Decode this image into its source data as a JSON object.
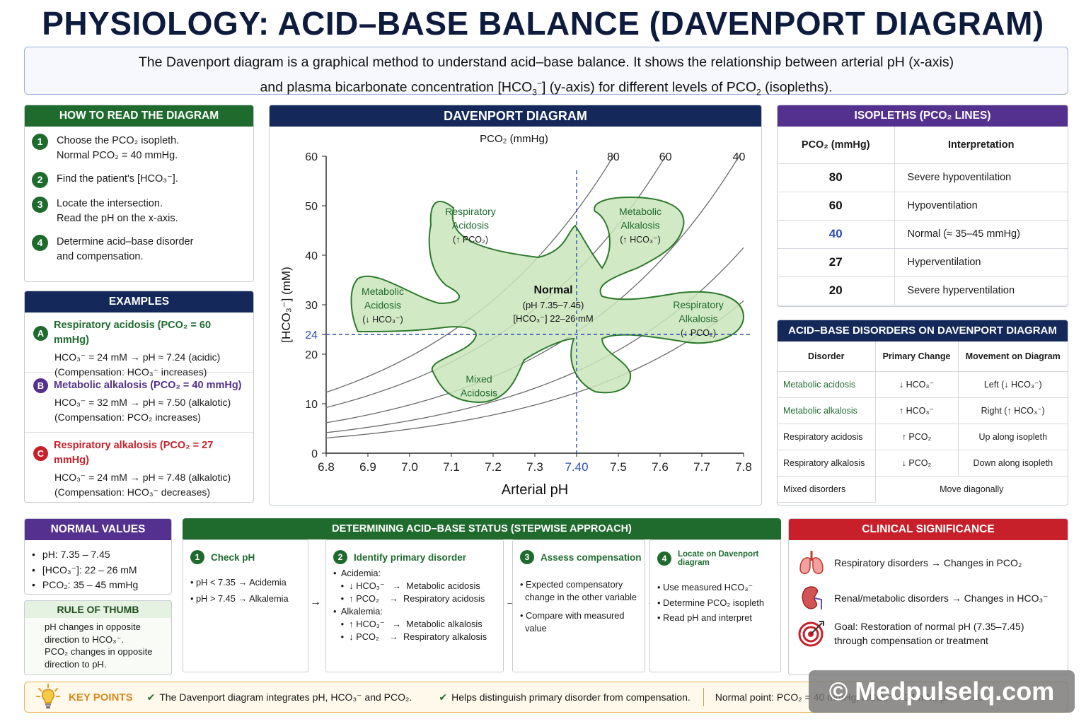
{
  "title": "PHYSIOLOGY: ACID–BASE BALANCE (DAVENPORT DIAGRAM)",
  "intro": {
    "line1": "The Davenport diagram is a graphical method to understand acid–base balance. It shows the relationship between arterial pH (x-axis)",
    "line2_a": "and plasma bicarbonate concentration [HCO",
    "line2_b": "] (y-axis) for different levels of PCO",
    "line2_c": " (isopleths)."
  },
  "how_to_read": {
    "heading": "HOW TO READ THE DIAGRAM",
    "steps": [
      {
        "num": "1",
        "line1": "Choose the PCO₂ isopleth.",
        "line2": "Normal PCO₂ = 40 mmHg."
      },
      {
        "num": "2",
        "line1": "Find the patient's [HCO₃⁻].",
        "line2": ""
      },
      {
        "num": "3",
        "line1": "Locate the intersection.",
        "line2": "Read the pH on the x-axis."
      },
      {
        "num": "4",
        "line1": "Determine acid–base disorder",
        "line2": "and compensation."
      }
    ]
  },
  "examples": {
    "heading": "EXAMPLES",
    "items": [
      {
        "letter": "A",
        "color": "#1f6b2e",
        "title": "Respiratory acidosis (PCO₂ = 60 mmHg)",
        "line1": "HCO₃⁻ = 24 mM   →  pH ≈ 7.24 (acidic)",
        "line2": "(Compensation: HCO₃⁻ increases)"
      },
      {
        "letter": "B",
        "color": "#55318f",
        "title": "Metabolic alkalosis (PCO₂ = 40 mmHg)",
        "line1": "HCO₃⁻ = 32 mM   →  pH ≈ 7.50 (alkalotic)",
        "line2": "(Compensation: PCO₂ increases)"
      },
      {
        "letter": "C",
        "color": "#c8202a",
        "title": "Respiratory alkalosis (PCO₂ = 27 mmHg)",
        "line1": "HCO₃⁻ = 24 mM   →  pH ≈ 7.48 (alkalotic)",
        "line2": "(Compensation: HCO₃⁻ decreases)"
      }
    ]
  },
  "diagram": {
    "heading": "DAVENPORT DIAGRAM",
    "pco2_label": "PCO₂ (mmHg)",
    "ylabel": "[HCO₃⁻] (mM)",
    "xlabel": "Arterial pH",
    "regions": {
      "normal_title": "Normal",
      "normal_line1": "(pH 7.35–7.45)",
      "normal_line2": "[HCO₃⁻] 22–26 mM",
      "resp_acid": [
        "Respiratory",
        "Acidosis",
        "(↑ PCO₂)"
      ],
      "met_alk": [
        "Metabolic",
        "Alkalosis",
        "(↑ HCO₃⁻)"
      ],
      "met_acid": [
        "Metabolic",
        "Acidosis",
        "(↓ HCO₃⁻)"
      ],
      "resp_alk": [
        "Respiratory",
        "Alkalosis",
        "(↓ PCO₂)"
      ],
      "mixed": [
        "Mixed",
        "Acidosis"
      ]
    }
  },
  "chart_data": {
    "type": "line",
    "title": "DAVENPORT DIAGRAM",
    "xlabel": "Arterial pH",
    "ylabel": "[HCO₃⁻] (mM)",
    "xlim": [
      6.8,
      7.8
    ],
    "ylim": [
      0,
      60
    ],
    "x_ticks": [
      "6.8",
      "6.9",
      "7.0",
      "7.1",
      "7.2",
      "7.3",
      "7.40",
      "7.5",
      "7.6",
      "7.7",
      "7.8"
    ],
    "y_ticks": [
      "0",
      "10",
      "20",
      "24",
      "30",
      "40",
      "50",
      "60"
    ],
    "series": [
      {
        "name": "80",
        "pco2": 80
      },
      {
        "name": "60",
        "pco2": 60
      },
      {
        "name": "40",
        "pco2": 40
      },
      {
        "name": "27",
        "pco2": 27
      },
      {
        "name": "20",
        "pco2": 20
      }
    ],
    "reference": {
      "ph": 7.4,
      "hco3": 24
    }
  },
  "isopleths": {
    "heading": "ISOPLETHS (PCO₂ LINES)",
    "col1": "PCO₂ (mmHg)",
    "col2": "Interpretation",
    "rows": [
      {
        "p": "80",
        "t": "Severe hypoventilation",
        "color": "#111111"
      },
      {
        "p": "60",
        "t": "Hypoventilation",
        "color": "#111111"
      },
      {
        "p": "40",
        "t": "Normal (≈ 35–45 mmHg)",
        "color": "#2b4fb4"
      },
      {
        "p": "27",
        "t": "Hyperventilation",
        "color": "#111111"
      },
      {
        "p": "20",
        "t": "Severe hyperventilation",
        "color": "#111111"
      }
    ]
  },
  "disorders": {
    "heading": "ACID–BASE DISORDERS ON DAVENPORT DIAGRAM",
    "cols": [
      "Disorder",
      "Primary Change",
      "Movement on Diagram"
    ],
    "rows": [
      {
        "d": "Metabolic acidosis",
        "p": "↓ HCO₃⁻",
        "m": "Left (↓ HCO₃⁻)",
        "green": true
      },
      {
        "d": "Metabolic alkalosis",
        "p": "↑ HCO₃⁻",
        "m": "Right (↑ HCO₃⁻)",
        "green": true
      },
      {
        "d": "Respiratory acidosis",
        "p": "↑ PCO₂",
        "m": "Up along isopleth",
        "green": false
      },
      {
        "d": "Respiratory alkalosis",
        "p": "↓ PCO₂",
        "m": "Down along isopleth",
        "green": false
      }
    ],
    "mixed": {
      "d": "Mixed disorders",
      "m": "Move diagonally"
    }
  },
  "normal_values": {
    "heading": "NORMAL VALUES",
    "items": [
      "pH:  7.35 – 7.45",
      "[HCO₃⁻]: 22 – 26 mM",
      "PCO₂: 35 – 45 mmHg"
    ]
  },
  "rule_of_thumb": {
    "heading": "RULE OF THUMB",
    "lines": [
      "pH changes in opposite",
      "direction to HCO₃⁻.",
      "PCO₂ changes in opposite",
      "direction to pH."
    ]
  },
  "stepwise": {
    "heading": "DETERMINING ACID–BASE STATUS (STEPWISE APPROACH)",
    "s1": {
      "num": "1",
      "title": "Check pH",
      "lines": [
        "•  pH < 7.35  →  Acidemia",
        "•  pH > 7.45  →  Alkalemia"
      ]
    },
    "s2": {
      "num": "2",
      "title": "Identify primary disorder",
      "lines": [
        "•  Acidemia:",
        "   •  ↓ HCO₃⁻   →  Metabolic acidosis",
        "   •  ↑ PCO₂    →  Respiratory acidosis",
        "•  Alkalemia:",
        "   •  ↑ HCO₃⁻   →  Metabolic alkalosis",
        "   •  ↓ PCO₂    →  Respiratory alkalosis"
      ]
    },
    "s3": {
      "num": "3",
      "title": "Assess compensation",
      "lines": [
        "• Expected compensatory",
        "  change in the other variable",
        "",
        "• Compare with measured",
        "  value"
      ]
    },
    "s4": {
      "num": "4",
      "title": "Locate on Davenport diagram",
      "lines": [
        "• Use measured HCO₃⁻",
        "",
        "• Determine PCO₂ isopleth",
        "",
        "• Read pH and interpret"
      ]
    }
  },
  "clinical": {
    "heading": "CLINICAL SIGNIFICANCE",
    "items": [
      {
        "icon": "lungs-icon",
        "line1": "Respiratory disorders  →  Changes in PCO₂",
        "line2": ""
      },
      {
        "icon": "kidney-icon",
        "line1": "Renal/metabolic disorders  →  Changes in HCO₃⁻",
        "line2": ""
      },
      {
        "icon": "target-icon",
        "line1": "Goal: Restoration of normal pH (7.35–7.45)",
        "line2": "through compensation or treatment"
      }
    ]
  },
  "key_points": {
    "label": "KEY POINTS",
    "p1": "The Davenport diagram integrates pH, HCO₃⁻ and PCO₂.",
    "p2": "Helps distinguish primary disorder from compensation.",
    "p3": "Normal point: PCO₂ = 40 mmHg, HCO₃⁻ = 24 mM, pH = 7.40"
  },
  "watermark": "© Medpulselq.com"
}
